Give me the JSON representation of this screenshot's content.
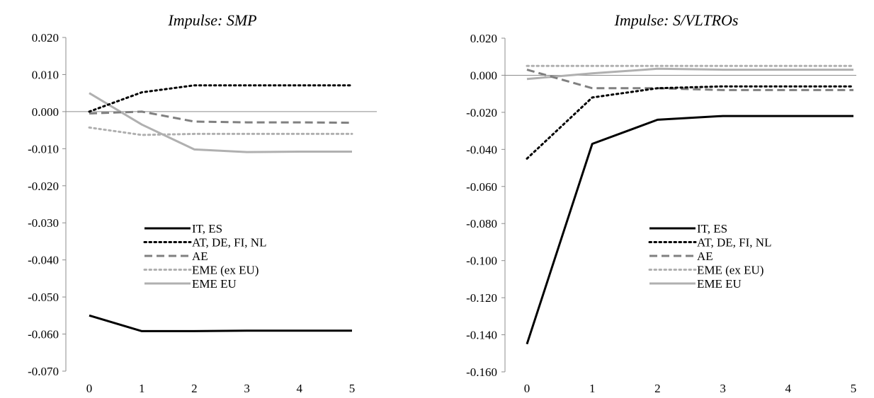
{
  "chart_data": [
    {
      "type": "line",
      "title": "Impulse: SMP",
      "xlabel": "",
      "ylabel": "",
      "x": [
        0,
        1,
        2,
        3,
        4,
        5
      ],
      "ylim": [
        -0.07,
        0.02
      ],
      "yticks": [
        0.02,
        0.01,
        0.0,
        -0.01,
        -0.02,
        -0.03,
        -0.04,
        -0.05,
        -0.06,
        -0.07
      ],
      "ytick_labels": [
        "0.020",
        "0.010",
        "0.000",
        "-0.010",
        "-0.020",
        "-0.030",
        "-0.040",
        "-0.050",
        "-0.060",
        "-0.070"
      ],
      "xtick_labels": [
        "0",
        "1",
        "2",
        "3",
        "4",
        "5"
      ],
      "grid": false,
      "legend_position": "lower-center",
      "series": [
        {
          "name": "IT, ES",
          "style": "solid",
          "color": "#000000",
          "width": 3,
          "values": [
            -0.055,
            -0.0592,
            -0.0592,
            -0.0591,
            -0.0591,
            -0.0591
          ]
        },
        {
          "name": "AT, DE, FI, NL",
          "style": "dotted",
          "color": "#000000",
          "width": 3,
          "values": [
            0.0,
            0.0052,
            0.0071,
            0.0071,
            0.0071,
            0.0071
          ]
        },
        {
          "name": "AE",
          "style": "dashed",
          "color": "#808080",
          "width": 3,
          "values": [
            -0.0005,
            0.0,
            -0.0027,
            -0.0029,
            -0.0029,
            -0.003
          ]
        },
        {
          "name": "EME (ex EU)",
          "style": "dotted",
          "color": "#b0b0b0",
          "width": 3,
          "values": [
            -0.0043,
            -0.0063,
            -0.006,
            -0.006,
            -0.006,
            -0.006
          ]
        },
        {
          "name": "EME EU",
          "style": "solid",
          "color": "#b0b0b0",
          "width": 3,
          "values": [
            0.005,
            -0.0035,
            -0.0102,
            -0.0109,
            -0.0108,
            -0.0108
          ]
        }
      ]
    },
    {
      "type": "line",
      "title": "Impulse: S/VLTROs",
      "xlabel": "",
      "ylabel": "",
      "x": [
        0,
        1,
        2,
        3,
        4,
        5
      ],
      "ylim": [
        -0.16,
        0.02
      ],
      "yticks": [
        0.02,
        0.0,
        -0.02,
        -0.04,
        -0.06,
        -0.08,
        -0.1,
        -0.12,
        -0.14,
        -0.16
      ],
      "ytick_labels": [
        "0.020",
        "0.000",
        "-0.020",
        "-0.040",
        "-0.060",
        "-0.080",
        "-0.100",
        "-0.120",
        "-0.140",
        "-0.160"
      ],
      "xtick_labels": [
        "0",
        "1",
        "2",
        "3",
        "4",
        "5"
      ],
      "grid": false,
      "legend_position": "lower-center",
      "series": [
        {
          "name": "IT, ES",
          "style": "solid",
          "color": "#000000",
          "width": 3,
          "values": [
            -0.145,
            -0.037,
            -0.024,
            -0.022,
            -0.022,
            -0.022
          ]
        },
        {
          "name": "AT, DE, FI, NL",
          "style": "dotted",
          "color": "#000000",
          "width": 3,
          "values": [
            -0.045,
            -0.012,
            -0.007,
            -0.006,
            -0.006,
            -0.006
          ]
        },
        {
          "name": "AE",
          "style": "dashed",
          "color": "#808080",
          "width": 3,
          "values": [
            0.003,
            -0.007,
            -0.007,
            -0.008,
            -0.008,
            -0.008
          ]
        },
        {
          "name": "EME (ex EU)",
          "style": "dotted",
          "color": "#b0b0b0",
          "width": 3,
          "values": [
            0.005,
            0.005,
            0.005,
            0.005,
            0.005,
            0.005
          ]
        },
        {
          "name": "EME EU",
          "style": "solid",
          "color": "#b0b0b0",
          "width": 3,
          "values": [
            -0.002,
            0.001,
            0.0035,
            0.003,
            0.003,
            0.003
          ]
        }
      ]
    }
  ]
}
